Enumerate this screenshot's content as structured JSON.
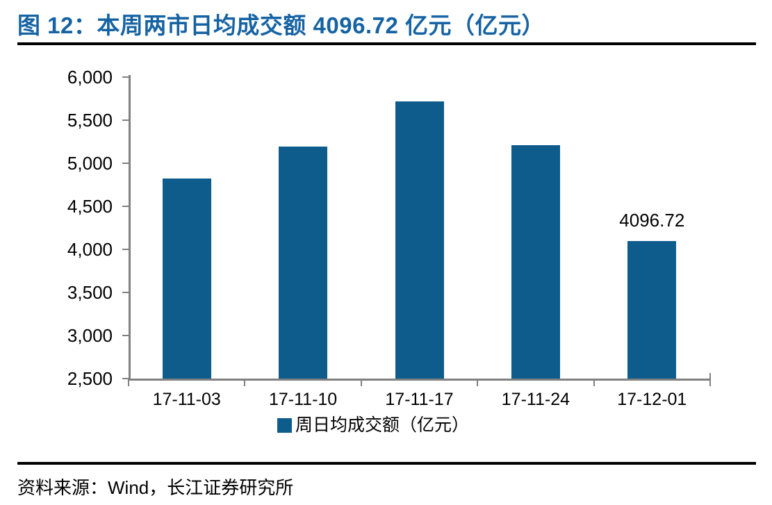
{
  "header": {
    "title": "图 12：本周两市日均成交额 4096.72 亿元（亿元）"
  },
  "chart_data": {
    "type": "bar",
    "title": "本周两市日均成交额 4096.72 亿元（亿元）",
    "categories": [
      "17-11-03",
      "17-11-10",
      "17-11-17",
      "17-11-24",
      "17-12-01"
    ],
    "series": [
      {
        "name": "周日均成交额（亿元）",
        "values": [
          4825,
          5195,
          5720,
          5210,
          4096.72
        ]
      }
    ],
    "point_labels": [
      null,
      null,
      null,
      null,
      "4096.72"
    ],
    "xlabel": "",
    "ylabel": "",
    "ylim": [
      2500,
      6000
    ],
    "yticks": [
      2500,
      3000,
      3500,
      4000,
      4500,
      5000,
      5500,
      6000
    ],
    "ytick_labels": [
      "2,500",
      "3,000",
      "3,500",
      "4,000",
      "4,500",
      "5,000",
      "5,500",
      "6,000"
    ],
    "grid": false,
    "legend_position": "bottom"
  },
  "legend": {
    "items": [
      {
        "label": "周日均成交额（亿元）"
      }
    ]
  },
  "footer": {
    "source": "资料来源：Wind，长江证券研究所"
  },
  "colors": {
    "title": "#1663A3",
    "bar": "#0D5C8C",
    "axis": "#808080",
    "text": "#000000",
    "rule": "#000000"
  }
}
